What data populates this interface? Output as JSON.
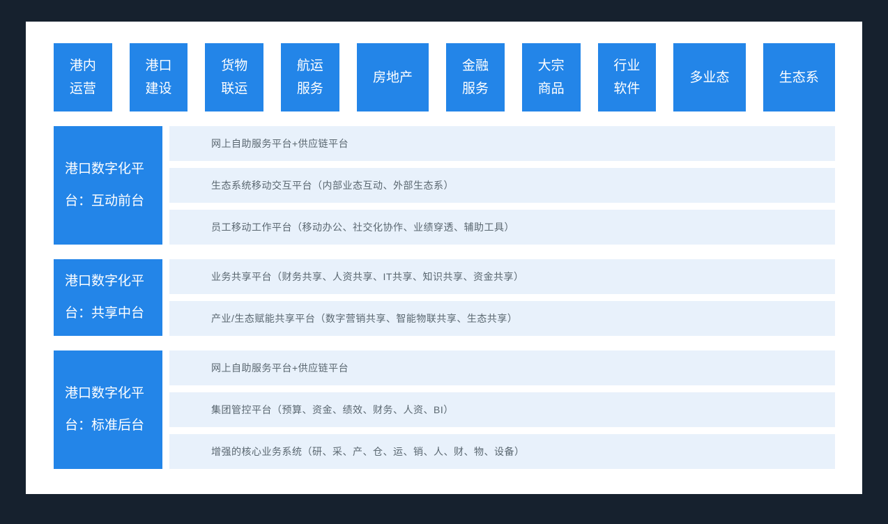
{
  "colors": {
    "background": "#16212E",
    "card": "#FFFFFF",
    "accent": "#2385E8",
    "row_bg": "#E8F1FB",
    "row_text": "#5A6770",
    "tab_text": "#FFFFFF"
  },
  "top_tabs": [
    {
      "label": "港内\n运营"
    },
    {
      "label": "港口\n建设"
    },
    {
      "label": "货物\n联运"
    },
    {
      "label": "航运\n服务"
    },
    {
      "label": "房地产"
    },
    {
      "label": "金融\n服务"
    },
    {
      "label": "大宗\n商品"
    },
    {
      "label": "行业\n软件"
    },
    {
      "label": "多业态"
    },
    {
      "label": "生态系"
    }
  ],
  "sections": [
    {
      "title": "港口数字化平\n台：互动前台",
      "rows": [
        "网上自助服务平台+供应链平台",
        "生态系统移动交互平台（内部业态互动、外部生态系）",
        "员工移动工作平台（移动办公、社交化协作、业绩穿透、辅助工具）"
      ]
    },
    {
      "title": "港口数字化平\n台：共享中台",
      "rows": [
        "业务共享平台（财务共享、人资共享、IT共享、知识共享、资金共享）",
        "产业/生态赋能共享平台（数字营销共享、智能物联共享、生态共享）"
      ]
    },
    {
      "title": "港口数字化平\n台：标准后台",
      "rows": [
        "网上自助服务平台+供应链平台",
        "集团管控平台（预算、资金、绩效、财务、人资、BI）",
        "增强的核心业务系统（研、采、产、仓、运、销、人、财、物、设备）"
      ]
    }
  ]
}
